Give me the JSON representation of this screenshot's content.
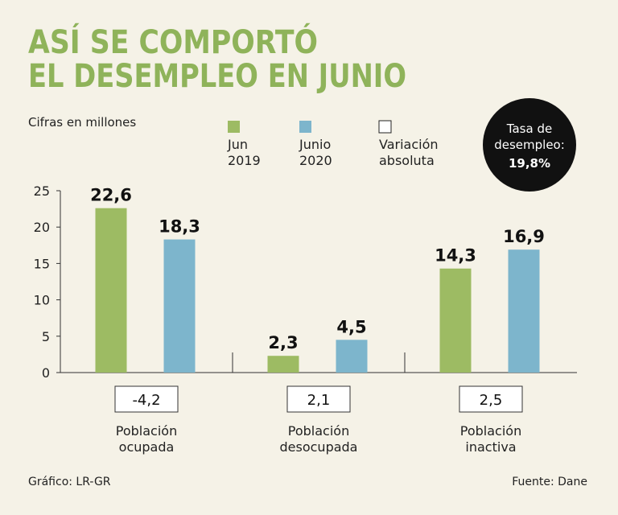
{
  "chart_data": {
    "type": "bar",
    "title": [
      "ASÍ SE COMPORTÓ",
      "EL DESEMPLEO EN JUNIO"
    ],
    "subtitle": "Cifras en millones",
    "categories": [
      "Población ocupada",
      "Población desocupada",
      "Población inactiva"
    ],
    "series": [
      {
        "name": "Jun 2019",
        "color": "#9dbb63",
        "values": [
          22.6,
          2.3,
          14.3
        ],
        "value_labels": [
          "22,6",
          "2,3",
          "14,3"
        ]
      },
      {
        "name": "Junio 2020",
        "color": "#7db5cc",
        "values": [
          18.3,
          4.5,
          16.9
        ],
        "value_labels": [
          "18,3",
          "4,5",
          "16,9"
        ]
      }
    ],
    "variation": {
      "name": "Variación absoluta",
      "values": [
        -4.2,
        2.1,
        2.5
      ],
      "value_labels": [
        "-4,2",
        "2,1",
        "2,5"
      ]
    },
    "rate": {
      "label": "Tasa de desempleo:",
      "value": 19.8,
      "value_label": "19,8%"
    },
    "ylim": [
      0,
      25
    ],
    "yticks": [
      0,
      5,
      10,
      15,
      20,
      25
    ],
    "source": "Fuente: Dane",
    "credit": "Gráfico: LR-GR"
  }
}
